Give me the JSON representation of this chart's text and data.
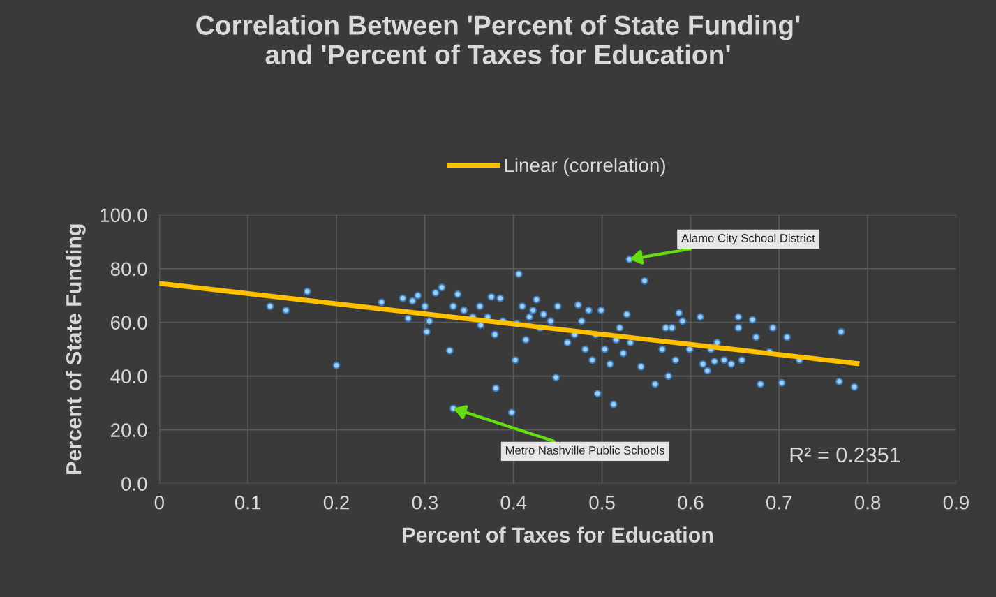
{
  "chart_data": {
    "type": "scatter",
    "title": "Correlation Between 'Percent of State Funding'\nand 'Percent of Taxes for Education'",
    "xlabel": "Percent of Taxes for Education",
    "ylabel": "Percent of State Funding",
    "xlim": [
      0,
      0.9
    ],
    "xticks": [
      0,
      0.1,
      0.2,
      0.3,
      0.4,
      0.5,
      0.6,
      0.7,
      0.8,
      0.9
    ],
    "ylim": [
      0,
      100
    ],
    "yticks": [
      {
        "value": 0,
        "label": "0.0"
      },
      {
        "value": 20,
        "label": "20.0"
      },
      {
        "value": 40,
        "label": "40.0"
      },
      {
        "value": 60,
        "label": "60.0"
      },
      {
        "value": 80,
        "label": "80.0"
      },
      {
        "value": 100,
        "label": "100.0"
      }
    ],
    "grid": true,
    "legend": "top",
    "series": [
      {
        "marker": "circle",
        "color": "#9dd0f5",
        "x": [
          0.125,
          0.143,
          0.167,
          0.2,
          0.251,
          0.275,
          0.281,
          0.286,
          0.292,
          0.3,
          0.302,
          0.305,
          0.312,
          0.319,
          0.328,
          0.332,
          0.332,
          0.337,
          0.344,
          0.354,
          0.362,
          0.363,
          0.371,
          0.375,
          0.379,
          0.38,
          0.385,
          0.388,
          0.398,
          0.402,
          0.404,
          0.406,
          0.41,
          0.414,
          0.418,
          0.422,
          0.426,
          0.43,
          0.434,
          0.442,
          0.448,
          0.45,
          0.461,
          0.469,
          0.473,
          0.477,
          0.481,
          0.485,
          0.489,
          0.493,
          0.495,
          0.499,
          0.503,
          0.509,
          0.513,
          0.516,
          0.52,
          0.524,
          0.528,
          0.531,
          0.532,
          0.548,
          0.544,
          0.56,
          0.568,
          0.572,
          0.575,
          0.579,
          0.583,
          0.587,
          0.591,
          0.599,
          0.611,
          0.614,
          0.619,
          0.623,
          0.627,
          0.63,
          0.638,
          0.646,
          0.654,
          0.654,
          0.658,
          0.67,
          0.674,
          0.679,
          0.689,
          0.693,
          0.703,
          0.709,
          0.723,
          0.768,
          0.77,
          0.785
        ],
        "values": [
          66,
          64.5,
          71.5,
          44,
          67.5,
          69,
          61.5,
          68,
          70,
          66,
          56.5,
          60.5,
          71,
          73,
          49.5,
          28,
          66,
          70.5,
          64.5,
          62,
          66,
          59,
          62,
          69.5,
          55.5,
          35.5,
          69,
          60.5,
          26.5,
          46,
          59.5,
          78,
          66,
          53.5,
          62,
          64.5,
          68.5,
          58,
          63,
          60.5,
          39.5,
          66,
          52.5,
          55.5,
          66.5,
          60.5,
          50,
          64.5,
          46,
          55.5,
          33.5,
          64.5,
          50,
          44.5,
          29.5,
          53.5,
          58,
          48.5,
          63,
          83.5,
          52.5,
          75.5,
          43.5,
          37,
          50,
          58,
          40,
          58,
          46,
          63.5,
          60.5,
          50,
          62,
          44.5,
          42,
          50,
          45.5,
          52.5,
          46,
          44.5,
          62,
          58,
          46,
          61,
          54.5,
          37,
          49,
          58,
          37.5,
          54.5,
          46,
          38,
          56.5,
          36
        ]
      },
      {
        "type": "line",
        "name": "Linear (correlation)",
        "color": "#ffc000",
        "x": [
          0,
          0.788
        ],
        "values": [
          74.5,
          44.7
        ]
      }
    ],
    "annotations": [
      {
        "text": "Alamo City School District",
        "x": 0.531,
        "y": 83.5
      },
      {
        "text": "Metro Nashville Public Schools",
        "x": 0.332,
        "y": 28
      },
      "R² = 0.2351"
    ]
  }
}
